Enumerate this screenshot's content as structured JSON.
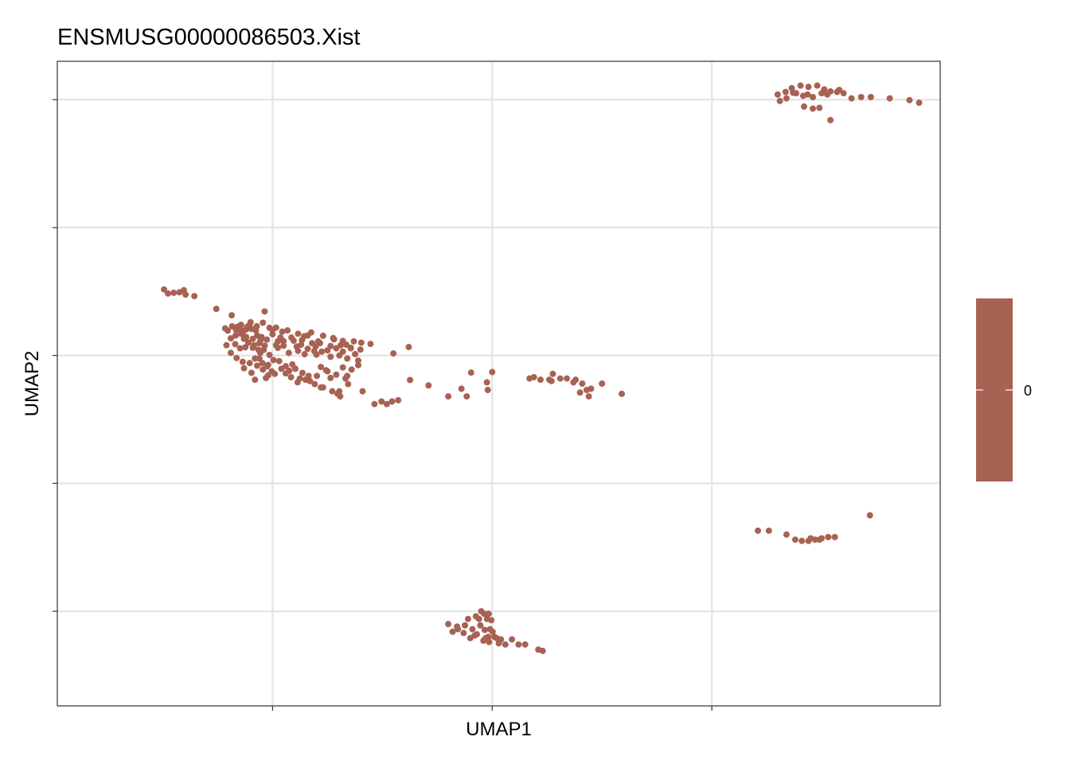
{
  "chart_data": {
    "type": "scatter",
    "title": "ENSMUSG00000086503.Xist",
    "xlabel": "UMAP1",
    "ylabel": "UMAP2",
    "xlim": [
      -4.9,
      15.2
    ],
    "ylim": [
      -13.7,
      11.5
    ],
    "x_gridlines": [
      0,
      5,
      10
    ],
    "y_gridlines": [
      -10,
      -5,
      0,
      5,
      10
    ],
    "grid": true,
    "point_color": "#A86253",
    "legend": {
      "position": "right",
      "type": "colorbar",
      "color": "#A86253",
      "ticks": [
        "0"
      ]
    },
    "points": [
      [
        -2.47,
        2.58
      ],
      [
        -2.38,
        2.42
      ],
      [
        -2.25,
        2.45
      ],
      [
        -2.12,
        2.47
      ],
      [
        -2.02,
        2.55
      ],
      [
        -1.98,
        2.38
      ],
      [
        -1.78,
        2.32
      ],
      [
        -1.28,
        1.82
      ],
      [
        -0.93,
        1.57
      ],
      [
        -1.08,
        1.06
      ],
      [
        -1.02,
        0.97
      ],
      [
        -0.92,
        1.14
      ],
      [
        -0.83,
        1.0
      ],
      [
        -0.76,
        1.08
      ],
      [
        -0.65,
        0.98
      ],
      [
        -0.58,
        1.12
      ],
      [
        -0.53,
        1.18
      ],
      [
        -0.48,
        1.04
      ],
      [
        -0.36,
        1.14
      ],
      [
        -0.22,
        1.28
      ],
      [
        -0.18,
        1.72
      ],
      [
        -0.07,
        1.08
      ],
      [
        0.08,
        1.09
      ],
      [
        0.22,
        0.93
      ],
      [
        0.34,
        0.98
      ],
      [
        0.58,
        0.85
      ],
      [
        0.8,
        0.78
      ],
      [
        1.15,
        0.77
      ],
      [
        1.4,
        0.63
      ],
      [
        1.6,
        0.57
      ],
      [
        1.85,
        0.55
      ],
      [
        2.23,
        0.45
      ],
      [
        2.75,
        0.08
      ],
      [
        3.1,
        0.33
      ],
      [
        -0.95,
        0.67
      ],
      [
        -0.84,
        0.78
      ],
      [
        -0.72,
        0.85
      ],
      [
        -0.6,
        0.72
      ],
      [
        -0.45,
        0.65
      ],
      [
        -0.35,
        0.78
      ],
      [
        -0.25,
        0.72
      ],
      [
        -0.13,
        0.62
      ],
      [
        0.0,
        0.83
      ],
      [
        0.12,
        0.55
      ],
      [
        0.25,
        0.56
      ],
      [
        0.43,
        0.7
      ],
      [
        0.67,
        0.6
      ],
      [
        0.9,
        0.48
      ],
      [
        1.08,
        0.48
      ],
      [
        1.32,
        0.37
      ],
      [
        1.55,
        0.4
      ],
      [
        1.78,
        0.3
      ],
      [
        2.0,
        0.23
      ],
      [
        -0.85,
        0.44
      ],
      [
        -0.74,
        0.28
      ],
      [
        -0.62,
        0.32
      ],
      [
        -0.45,
        0.3
      ],
      [
        -0.32,
        0.22
      ],
      [
        -0.2,
        0.22
      ],
      [
        -0.07,
        0.02
      ],
      [
        0.12,
        0.3
      ],
      [
        0.25,
        0.38
      ],
      [
        0.37,
        0.1
      ],
      [
        0.58,
        0.18
      ],
      [
        0.73,
        0.05
      ],
      [
        0.95,
        0.17
      ],
      [
        1.12,
        0.15
      ],
      [
        1.32,
        -0.05
      ],
      [
        1.52,
        0.0
      ],
      [
        1.7,
        -0.12
      ],
      [
        1.95,
        -0.2
      ],
      [
        1.04,
        0.55
      ],
      [
        -0.3,
        -0.12
      ],
      [
        -0.23,
        -0.3
      ],
      [
        -0.1,
        -0.37
      ],
      [
        0.02,
        -0.18
      ],
      [
        0.15,
        -0.22
      ],
      [
        0.3,
        -0.42
      ],
      [
        0.45,
        -0.35
      ],
      [
        0.68,
        -0.68
      ],
      [
        0.82,
        -0.8
      ],
      [
        1.01,
        -0.8
      ],
      [
        1.1,
        -1.25
      ],
      [
        1.32,
        -0.88
      ],
      [
        1.48,
        -1.5
      ],
      [
        1.54,
        -1.6
      ],
      [
        1.6,
        -0.47
      ],
      [
        1.72,
        -1.12
      ],
      [
        2.05,
        -1.4
      ],
      [
        2.32,
        -1.9
      ],
      [
        2.48,
        -1.8
      ],
      [
        2.6,
        -1.9
      ],
      [
        2.72,
        -1.8
      ],
      [
        2.86,
        -1.75
      ],
      [
        3.13,
        -0.96
      ],
      [
        3.55,
        -1.17
      ],
      [
        4.0,
        -1.6
      ],
      [
        4.3,
        -1.3
      ],
      [
        4.42,
        -1.6
      ],
      [
        4.52,
        -0.67
      ],
      [
        -1.05,
        0.4
      ],
      [
        -0.95,
        0.1
      ],
      [
        -0.82,
        -0.1
      ],
      [
        -0.68,
        -0.25
      ],
      [
        -0.52,
        -0.3
      ],
      [
        -0.4,
        -0.12
      ],
      [
        -0.28,
        0.1
      ],
      [
        -0.12,
        -0.42
      ],
      [
        -0.02,
        -0.62
      ],
      [
        0.3,
        -0.7
      ],
      [
        0.52,
        -0.52
      ],
      [
        0.62,
        -0.9
      ],
      [
        0.85,
        -1.0
      ],
      [
        1.1,
        -0.45
      ],
      [
        1.25,
        -0.62
      ],
      [
        1.45,
        -0.75
      ],
      [
        1.66,
        -0.9
      ],
      [
        1.8,
        -0.55
      ],
      [
        1.95,
        -0.38
      ],
      [
        -0.65,
        -0.5
      ],
      [
        -0.48,
        -0.68
      ],
      [
        -0.35,
        -0.4
      ],
      [
        -0.22,
        -0.55
      ],
      [
        -0.1,
        -0.78
      ],
      [
        0.05,
        -0.72
      ],
      [
        0.2,
        -0.52
      ],
      [
        0.42,
        -0.85
      ],
      [
        0.57,
        -1.05
      ],
      [
        0.75,
        -0.95
      ],
      [
        0.96,
        -1.12
      ],
      [
        1.15,
        -1.25
      ],
      [
        1.36,
        -1.4
      ],
      [
        1.52,
        -1.4
      ],
      [
        1.7,
        -0.8
      ],
      [
        1.22,
        -0.58
      ],
      [
        0.38,
        -0.6
      ],
      [
        -0.4,
        -0.95
      ],
      [
        -0.15,
        -0.88
      ],
      [
        -0.68,
        0.88
      ],
      [
        -0.55,
        0.5
      ],
      [
        -0.42,
        0.4
      ],
      [
        -0.3,
        0.48
      ],
      [
        -0.18,
        0.38
      ],
      [
        0.08,
        0.4
      ],
      [
        0.55,
        0.35
      ],
      [
        0.8,
        0.26
      ],
      [
        1.0,
        0.03
      ],
      [
        1.25,
        0.2
      ],
      [
        1.6,
        0.15
      ],
      [
        1.88,
        0.05
      ],
      [
        -0.72,
        1.2
      ],
      [
        -0.6,
        1.02
      ],
      [
        -0.38,
        0.98
      ],
      [
        0.0,
        1.0
      ],
      [
        0.48,
        0.58
      ],
      [
        0.65,
        0.42
      ],
      [
        0.98,
        0.35
      ],
      [
        1.45,
        0.28
      ],
      [
        1.68,
        0.42
      ],
      [
        -0.5,
        1.3
      ],
      [
        -0.27,
        0.6
      ],
      [
        0.18,
        0.7
      ],
      [
        0.72,
        0.75
      ],
      [
        0.88,
        0.9
      ],
      [
        1.38,
        0.68
      ],
      [
        1.78,
        0.28
      ],
      [
        2.02,
        0.5
      ],
      [
        -0.8,
        1.12
      ],
      [
        -0.65,
        0.65
      ],
      [
        5.0,
        -0.65
      ],
      [
        4.88,
        -1.05
      ],
      [
        5.85,
        -0.9
      ],
      [
        5.95,
        -0.85
      ],
      [
        6.1,
        -0.95
      ],
      [
        6.3,
        -0.95
      ],
      [
        6.38,
        -0.72
      ],
      [
        6.55,
        -0.9
      ],
      [
        6.7,
        -0.9
      ],
      [
        6.85,
        -1.05
      ],
      [
        7.05,
        -1.1
      ],
      [
        7.0,
        -1.45
      ],
      [
        7.2,
        -1.6
      ],
      [
        7.25,
        -1.3
      ],
      [
        7.5,
        -1.1
      ],
      [
        7.95,
        -1.5
      ],
      [
        4.9,
        -1.35
      ],
      [
        6.35,
        -1.0
      ],
      [
        6.9,
        -0.95
      ],
      [
        7.15,
        -1.35
      ],
      [
        11.5,
        10.2
      ],
      [
        11.68,
        10.3
      ],
      [
        11.82,
        10.45
      ],
      [
        11.92,
        10.25
      ],
      [
        12.08,
        10.15
      ],
      [
        12.18,
        10.2
      ],
      [
        12.3,
        10.1
      ],
      [
        12.5,
        10.25
      ],
      [
        12.7,
        10.32
      ],
      [
        12.85,
        10.3
      ],
      [
        13.0,
        10.25
      ],
      [
        12.4,
        10.55
      ],
      [
        12.56,
        10.4
      ],
      [
        12.63,
        10.2
      ],
      [
        12.2,
        10.5
      ],
      [
        12.02,
        10.55
      ],
      [
        11.85,
        10.27
      ],
      [
        11.7,
        10.05
      ],
      [
        11.55,
        9.95
      ],
      [
        12.1,
        9.73
      ],
      [
        12.3,
        9.65
      ],
      [
        12.7,
        9.2
      ],
      [
        13.18,
        10.05
      ],
      [
        13.4,
        10.1
      ],
      [
        13.62,
        10.1
      ],
      [
        14.05,
        10.05
      ],
      [
        14.5,
        9.98
      ],
      [
        14.72,
        9.88
      ],
      [
        12.9,
        10.38
      ],
      [
        12.45,
        9.68
      ]
    ],
    "points_lower_right": [
      [
        11.05,
        -6.85
      ],
      [
        11.3,
        -6.85
      ],
      [
        11.7,
        -7.0
      ],
      [
        11.9,
        -7.2
      ],
      [
        12.05,
        -7.25
      ],
      [
        12.2,
        -7.25
      ],
      [
        12.35,
        -7.2
      ],
      [
        12.5,
        -7.15
      ],
      [
        12.65,
        -7.1
      ],
      [
        12.8,
        -7.1
      ],
      [
        13.6,
        -6.25
      ],
      [
        12.25,
        -7.15
      ],
      [
        12.45,
        -7.2
      ]
    ],
    "points_bottom": [
      [
        4.45,
        -10.3
      ],
      [
        4.63,
        -10.2
      ],
      [
        4.75,
        -10.0
      ],
      [
        4.82,
        -10.1
      ],
      [
        4.88,
        -10.3
      ],
      [
        4.92,
        -10.1
      ],
      [
        4.98,
        -10.35
      ],
      [
        4.55,
        -10.7
      ],
      [
        4.73,
        -10.55
      ],
      [
        4.83,
        -10.73
      ],
      [
        4.91,
        -11.0
      ],
      [
        5.01,
        -10.8
      ],
      [
        5.1,
        -11.05
      ],
      [
        5.2,
        -11.1
      ],
      [
        5.3,
        -11.3
      ],
      [
        5.45,
        -11.1
      ],
      [
        5.6,
        -11.3
      ],
      [
        5.75,
        -11.3
      ],
      [
        6.05,
        -11.5
      ],
      [
        6.15,
        -11.55
      ],
      [
        4.0,
        -10.5
      ],
      [
        4.1,
        -10.8
      ],
      [
        4.2,
        -10.6
      ],
      [
        4.35,
        -10.85
      ],
      [
        4.5,
        -11.05
      ],
      [
        4.65,
        -10.9
      ],
      [
        4.8,
        -11.15
      ],
      [
        4.93,
        -11.2
      ],
      [
        5.05,
        -11.0
      ],
      [
        4.22,
        -10.7
      ],
      [
        4.38,
        -10.55
      ],
      [
        4.6,
        -10.95
      ],
      [
        4.85,
        -11.05
      ],
      [
        5.15,
        -11.25
      ],
      [
        4.7,
        -10.3
      ],
      [
        4.95,
        -10.7
      ]
    ]
  }
}
